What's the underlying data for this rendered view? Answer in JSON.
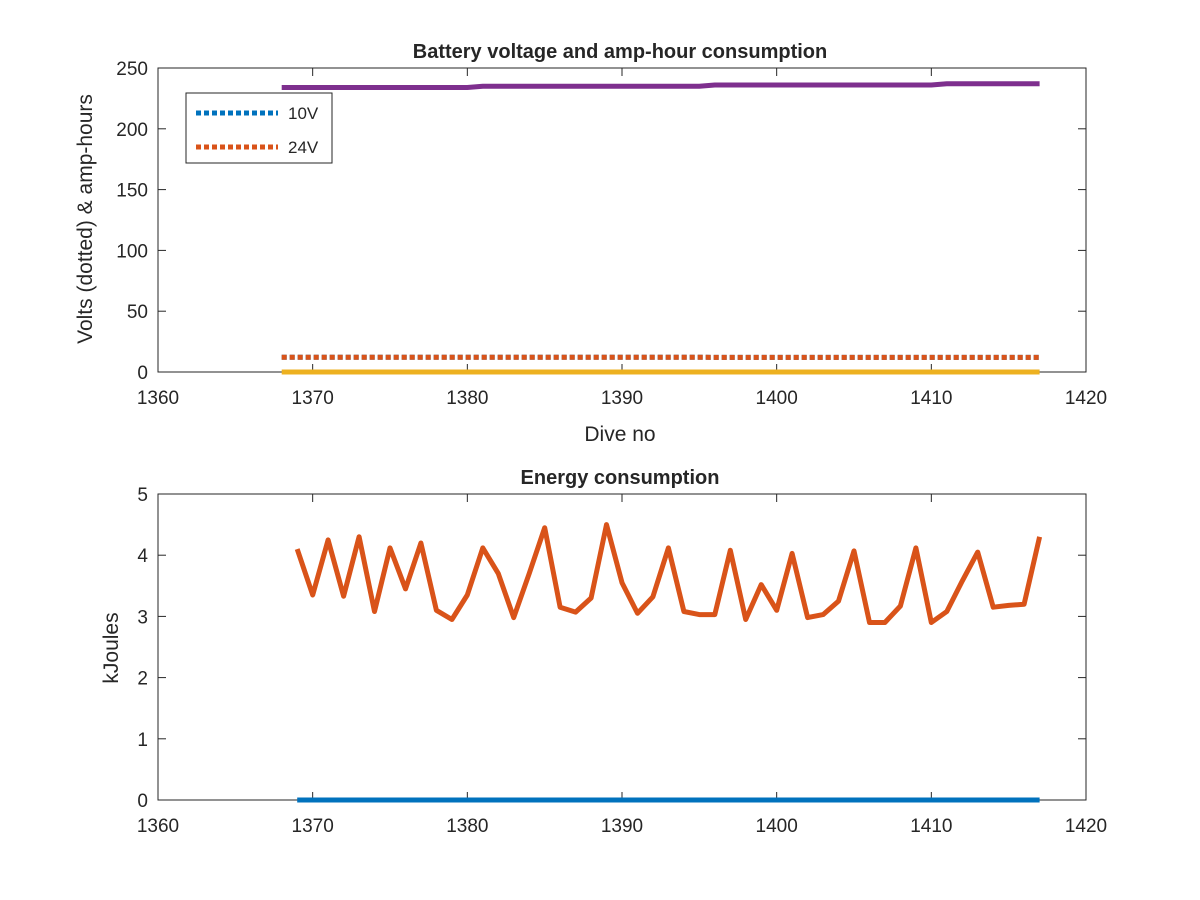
{
  "chart_data": [
    {
      "type": "line",
      "title": "Battery voltage and amp-hour consumption",
      "xlabel": "Dive no",
      "ylabel": "Volts (dotted) & amp-hours",
      "xlim": [
        1360,
        1420
      ],
      "ylim": [
        0,
        250
      ],
      "xticks": [
        1360,
        1370,
        1380,
        1390,
        1400,
        1410,
        1420
      ],
      "yticks": [
        0,
        50,
        100,
        150,
        200,
        250
      ],
      "legend": {
        "position": "top-left",
        "entries": [
          "10V",
          "24V"
        ]
      },
      "grid": false,
      "series": [
        {
          "name": "10V",
          "style": "dotted",
          "color": "#0072BD",
          "x": [
            1368,
            1417
          ],
          "y": [
            12.2,
            12.0
          ]
        },
        {
          "name": "24V",
          "style": "dotted",
          "color": "#D95319",
          "x": [
            1368,
            1417
          ],
          "y": [
            12.2,
            12.0
          ]
        },
        {
          "style": "solid",
          "color": "#7E2F8E",
          "x": [
            1368,
            1380,
            1381,
            1395,
            1396,
            1410,
            1411,
            1417
          ],
          "y": [
            234,
            234,
            235,
            235,
            236,
            236,
            237,
            237
          ]
        },
        {
          "style": "solid",
          "color": "#EDB120",
          "x": [
            1368,
            1417
          ],
          "y": [
            0,
            0
          ]
        }
      ]
    },
    {
      "type": "line",
      "title": "Energy consumption",
      "xlabel": "",
      "ylabel": "kJoules",
      "xlim": [
        1360,
        1420
      ],
      "ylim": [
        0,
        5
      ],
      "xticks": [
        1360,
        1370,
        1380,
        1390,
        1400,
        1410,
        1420
      ],
      "yticks": [
        0,
        1,
        2,
        3,
        4,
        5
      ],
      "grid": false,
      "series": [
        {
          "style": "solid",
          "color": "#0072BD",
          "x": [
            1369,
            1417
          ],
          "y": [
            0,
            0
          ]
        },
        {
          "style": "solid",
          "color": "#D95319",
          "x": [
            1369,
            1370,
            1371,
            1372,
            1373,
            1374,
            1375,
            1376,
            1377,
            1378,
            1379,
            1380,
            1381,
            1382,
            1383,
            1384,
            1385,
            1386,
            1387,
            1388,
            1389,
            1390,
            1391,
            1392,
            1393,
            1394,
            1395,
            1396,
            1397,
            1398,
            1399,
            1400,
            1401,
            1402,
            1403,
            1404,
            1405,
            1406,
            1407,
            1408,
            1409,
            1410,
            1411,
            1412,
            1413,
            1414,
            1415,
            1416,
            1417
          ],
          "y": [
            4.1,
            3.35,
            4.25,
            3.33,
            4.3,
            3.08,
            4.12,
            3.45,
            4.2,
            3.1,
            2.95,
            3.35,
            4.12,
            3.7,
            2.98,
            3.7,
            4.45,
            3.15,
            3.07,
            3.3,
            4.5,
            3.55,
            3.05,
            3.32,
            4.12,
            3.08,
            3.03,
            3.03,
            4.08,
            2.95,
            3.52,
            3.1,
            4.03,
            2.98,
            3.03,
            3.25,
            4.07,
            2.9,
            2.9,
            3.17,
            4.12,
            2.9,
            3.08,
            3.58,
            4.05,
            3.15,
            3.18,
            3.2,
            4.3
          ]
        }
      ]
    }
  ]
}
